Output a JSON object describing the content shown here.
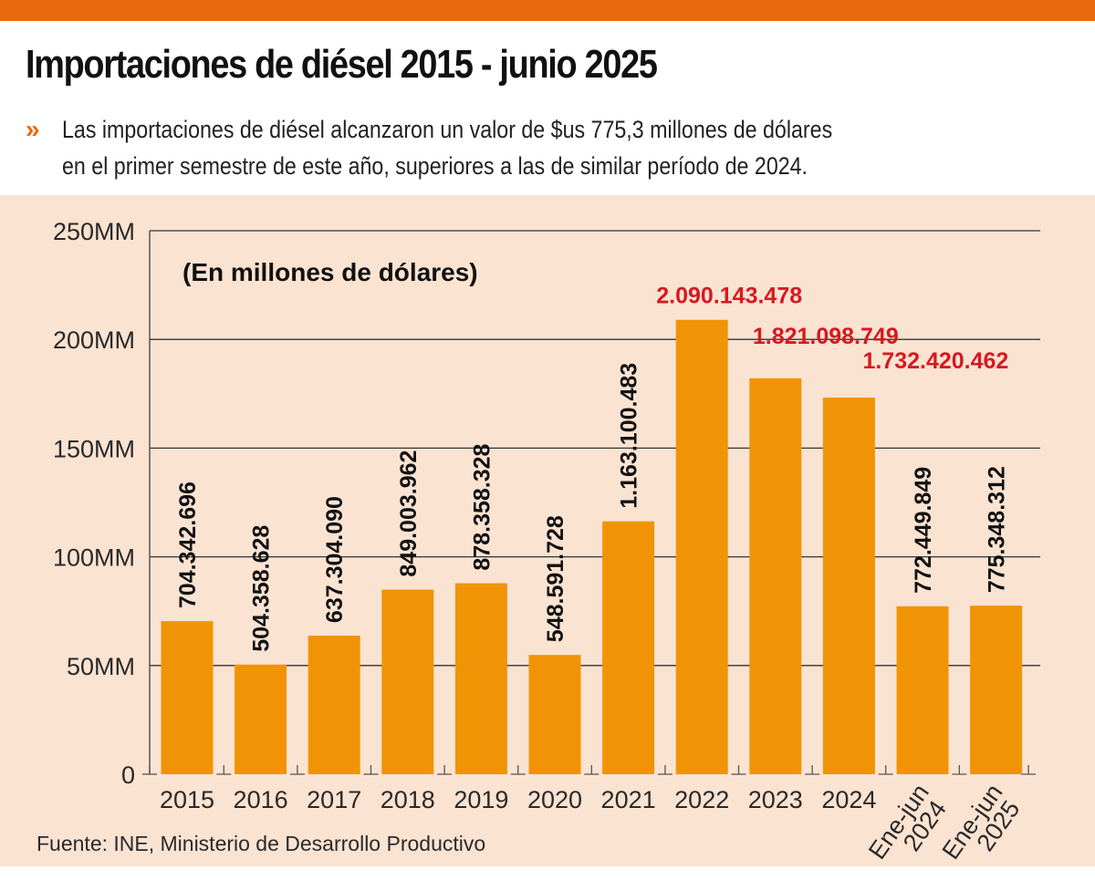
{
  "header": {
    "title": "Importaciones de diésel 2015 - junio 2025",
    "bullet_icon": "»",
    "subtitle_line1": "Las importaciones de diésel alcanzaron un valor de $us 775,3 millones de dólares",
    "subtitle_line2": "en el primer semestre de este año, superiores a las de similar período de 2024."
  },
  "colors": {
    "top_bar": "#ec6a0f",
    "bar": "#f09406",
    "panel_bg": "#fbe3d2",
    "highlight_label": "#d71920",
    "label": "#111111"
  },
  "chart_data": {
    "type": "bar",
    "title": "Importaciones de diésel 2015 - junio 2025",
    "unit_note": "(En millones de dólares)",
    "xlabel": "",
    "ylabel": "",
    "ylim": [
      0,
      250
    ],
    "yticks": [
      {
        "value": 0,
        "label": "0"
      },
      {
        "value": 50,
        "label": "50MM"
      },
      {
        "value": 100,
        "label": "100MM"
      },
      {
        "value": 150,
        "label": "150MM"
      },
      {
        "value": 200,
        "label": "200MM"
      },
      {
        "value": 250,
        "label": "250MM"
      }
    ],
    "grid": true,
    "categories": [
      "2015",
      "2016",
      "2017",
      "2018",
      "2019",
      "2020",
      "2021",
      "2022",
      "2023",
      "2024",
      "Ene-jun 2024",
      "Ene-jun 2025"
    ],
    "category_lines": [
      [
        "2015"
      ],
      [
        "2016"
      ],
      [
        "2017"
      ],
      [
        "2018"
      ],
      [
        "2019"
      ],
      [
        "2020"
      ],
      [
        "2021"
      ],
      [
        "2022"
      ],
      [
        "2023"
      ],
      [
        "2024"
      ],
      [
        "Ene-jun",
        "2024"
      ],
      [
        "Ene-jun",
        "2025"
      ]
    ],
    "values_usd": [
      704342696,
      504358628,
      637304090,
      849003962,
      878358328,
      548591728,
      1163100483,
      2090143478,
      1821098749,
      1732420462,
      772449849,
      775348312
    ],
    "values_axis_units": [
      70.43,
      50.44,
      63.73,
      84.9,
      87.84,
      54.86,
      116.31,
      209.01,
      182.11,
      173.24,
      77.24,
      77.53
    ],
    "data_labels": [
      "704.342.696",
      "504.358.628",
      "637.304.090",
      "849.003.962",
      "878.358.328",
      "548.591.728",
      "1.163.100.483",
      "2.090.143.478",
      "1.821.098.749",
      "1.732.420.462",
      "772.449.849",
      "775.348.312"
    ],
    "highlighted": [
      false,
      false,
      false,
      false,
      false,
      false,
      false,
      true,
      true,
      true,
      false,
      false
    ],
    "source": "Fuente: INE, Ministerio de Desarrollo Productivo"
  }
}
